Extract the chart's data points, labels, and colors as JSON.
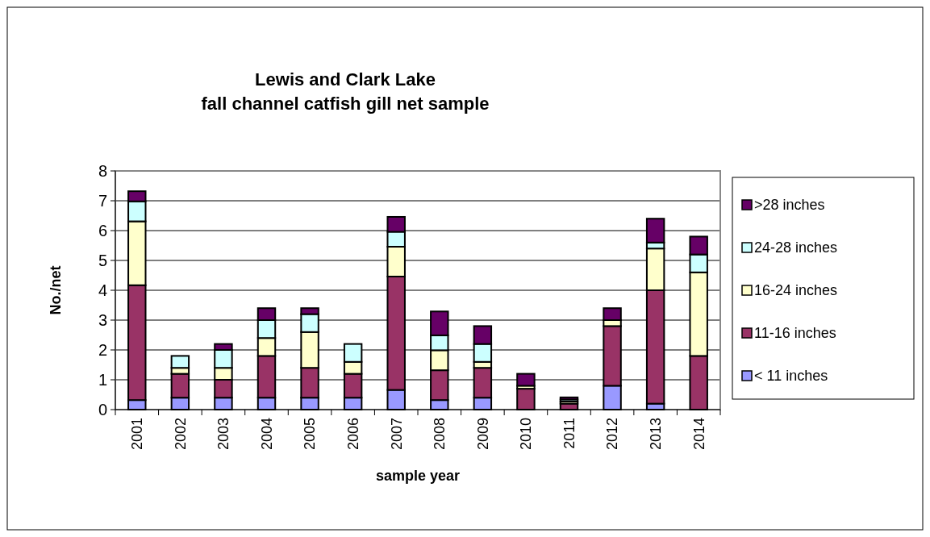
{
  "chart_data": {
    "type": "bar",
    "title": "Lewis and Clark Lake\nfall channel catfish gill net sample",
    "xlabel": "sample year",
    "ylabel": "No./net",
    "categories": [
      "2001",
      "2002",
      "2003",
      "2004",
      "2005",
      "2006",
      "2007",
      "2008",
      "2009",
      "2010",
      "2011",
      "2012",
      "2013",
      "2014"
    ],
    "stacked": true,
    "ylim": [
      0,
      8
    ],
    "yticks": [
      0,
      1,
      2,
      3,
      4,
      5,
      6,
      7,
      8
    ],
    "grid": "y",
    "legend": "right",
    "series": [
      {
        "name": "< 11 inches",
        "color": "#9999ff",
        "values": [
          0.32,
          0.4,
          0.4,
          0.4,
          0.4,
          0.4,
          0.66,
          0.32,
          0.4,
          0,
          0,
          0.8,
          0.2,
          0
        ]
      },
      {
        "name": "11-16 inches",
        "color": "#993366",
        "values": [
          3.85,
          0.8,
          0.6,
          1.4,
          1.0,
          0.8,
          3.8,
          1.0,
          1.0,
          0.7,
          0.2,
          2.0,
          3.8,
          1.8
        ]
      },
      {
        "name": "16-24 inches",
        "color": "#ffffcc",
        "values": [
          2.14,
          0.2,
          0.4,
          0.6,
          1.2,
          0.4,
          1.0,
          0.67,
          0.2,
          0.1,
          0.07,
          0.2,
          1.4,
          2.8
        ]
      },
      {
        "name": "24-28 inches",
        "color": "#ccffff",
        "values": [
          0.67,
          0.4,
          0.6,
          0.6,
          0.6,
          0.6,
          0.5,
          0.5,
          0.6,
          0,
          0.07,
          0,
          0.2,
          0.6
        ]
      },
      {
        "name": ">28 inches",
        "color": "#660066",
        "values": [
          0.34,
          0,
          0.2,
          0.4,
          0.2,
          0,
          0.5,
          0.8,
          0.6,
          0.4,
          0.07,
          0.4,
          0.8,
          0.6
        ]
      }
    ]
  }
}
